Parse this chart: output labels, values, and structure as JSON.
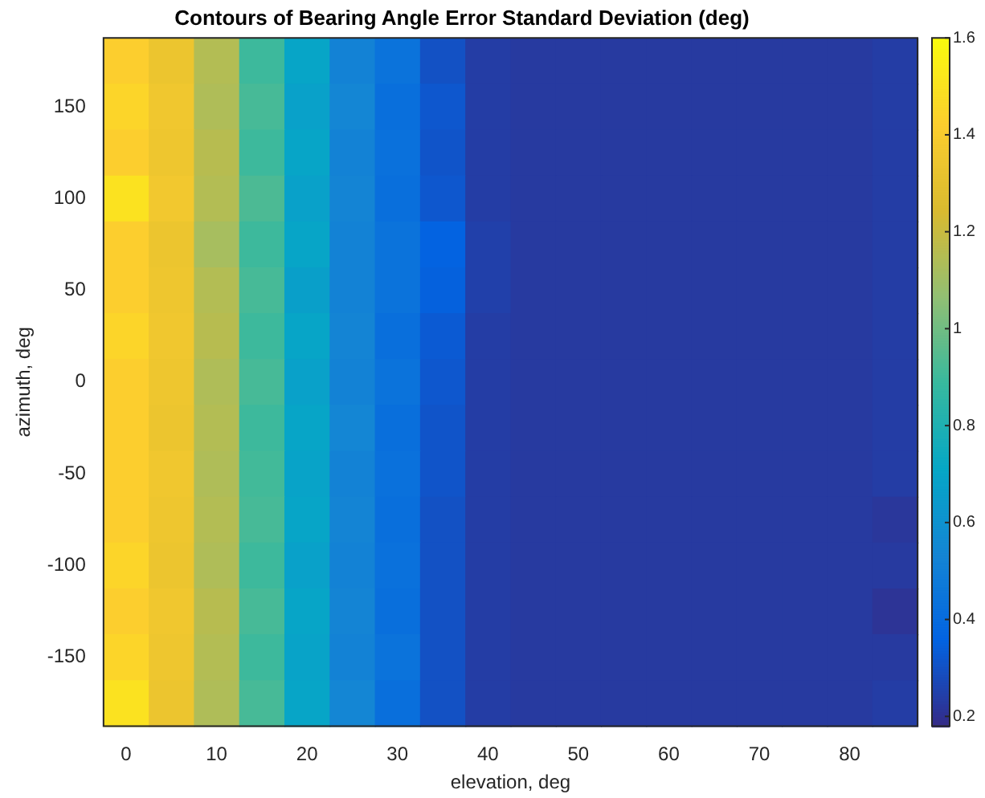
{
  "chart_data": {
    "type": "heatmap",
    "title": "Contours of Bearing Angle Error Standard Deviation (deg)",
    "xlabel": "elevation, deg",
    "ylabel": "azimuth, deg",
    "categories": [
      "0",
      null,
      "10",
      null,
      "20",
      null,
      "30",
      null,
      "40",
      null,
      "50",
      null,
      "60",
      null,
      "70",
      null,
      "80",
      null
    ],
    "y_categories": [
      null,
      "150",
      null,
      "100",
      null,
      "50",
      null,
      "0",
      null,
      "-50",
      null,
      "-100",
      null,
      "-150",
      null
    ],
    "cells": [
      [
        1.42,
        1.34,
        1.15,
        0.9,
        0.7,
        0.52,
        0.44,
        0.3,
        0.24,
        0.23,
        0.23,
        0.23,
        0.23,
        0.23,
        0.23,
        0.23,
        0.23,
        0.24
      ],
      [
        1.45,
        1.36,
        1.14,
        0.92,
        0.68,
        0.54,
        0.42,
        0.32,
        0.24,
        0.23,
        0.23,
        0.23,
        0.23,
        0.23,
        0.23,
        0.23,
        0.23,
        0.24
      ],
      [
        1.42,
        1.35,
        1.16,
        0.9,
        0.7,
        0.52,
        0.43,
        0.31,
        0.24,
        0.23,
        0.23,
        0.23,
        0.23,
        0.23,
        0.23,
        0.23,
        0.23,
        0.24
      ],
      [
        1.5,
        1.37,
        1.15,
        0.93,
        0.68,
        0.53,
        0.42,
        0.32,
        0.24,
        0.23,
        0.23,
        0.23,
        0.23,
        0.23,
        0.23,
        0.23,
        0.23,
        0.24
      ],
      [
        1.42,
        1.34,
        1.12,
        0.9,
        0.7,
        0.52,
        0.44,
        0.36,
        0.25,
        0.23,
        0.23,
        0.23,
        0.23,
        0.23,
        0.23,
        0.23,
        0.23,
        0.24
      ],
      [
        1.42,
        1.35,
        1.15,
        0.92,
        0.67,
        0.52,
        0.44,
        0.35,
        0.25,
        0.23,
        0.23,
        0.23,
        0.23,
        0.23,
        0.23,
        0.23,
        0.23,
        0.24
      ],
      [
        1.45,
        1.36,
        1.16,
        0.9,
        0.7,
        0.53,
        0.42,
        0.33,
        0.24,
        0.23,
        0.23,
        0.23,
        0.23,
        0.23,
        0.23,
        0.23,
        0.23,
        0.24
      ],
      [
        1.42,
        1.35,
        1.14,
        0.92,
        0.68,
        0.52,
        0.44,
        0.32,
        0.24,
        0.23,
        0.23,
        0.23,
        0.23,
        0.23,
        0.23,
        0.23,
        0.23,
        0.24
      ],
      [
        1.42,
        1.34,
        1.15,
        0.9,
        0.7,
        0.54,
        0.42,
        0.31,
        0.24,
        0.23,
        0.23,
        0.23,
        0.23,
        0.23,
        0.23,
        0.23,
        0.23,
        0.24
      ],
      [
        1.42,
        1.36,
        1.14,
        0.91,
        0.69,
        0.52,
        0.43,
        0.31,
        0.24,
        0.23,
        0.23,
        0.23,
        0.23,
        0.23,
        0.23,
        0.23,
        0.23,
        0.24
      ],
      [
        1.42,
        1.35,
        1.15,
        0.92,
        0.7,
        0.53,
        0.42,
        0.3,
        0.24,
        0.23,
        0.23,
        0.23,
        0.23,
        0.23,
        0.23,
        0.23,
        0.23,
        0.22
      ],
      [
        1.45,
        1.34,
        1.14,
        0.9,
        0.68,
        0.52,
        0.43,
        0.3,
        0.24,
        0.23,
        0.23,
        0.23,
        0.23,
        0.23,
        0.23,
        0.23,
        0.23,
        0.23
      ],
      [
        1.42,
        1.36,
        1.16,
        0.92,
        0.7,
        0.53,
        0.42,
        0.3,
        0.24,
        0.23,
        0.23,
        0.23,
        0.23,
        0.23,
        0.23,
        0.23,
        0.23,
        0.21
      ],
      [
        1.45,
        1.35,
        1.15,
        0.9,
        0.69,
        0.52,
        0.44,
        0.3,
        0.24,
        0.23,
        0.23,
        0.23,
        0.23,
        0.23,
        0.23,
        0.23,
        0.23,
        0.23
      ],
      [
        1.5,
        1.34,
        1.14,
        0.92,
        0.7,
        0.54,
        0.42,
        0.3,
        0.24,
        0.23,
        0.23,
        0.23,
        0.23,
        0.23,
        0.23,
        0.23,
        0.23,
        0.24
      ]
    ],
    "clim": [
      0.18,
      1.6
    ],
    "cticks": [
      0.2,
      0.4,
      0.6,
      0.8,
      1,
      1.2,
      1.4,
      1.6
    ]
  }
}
